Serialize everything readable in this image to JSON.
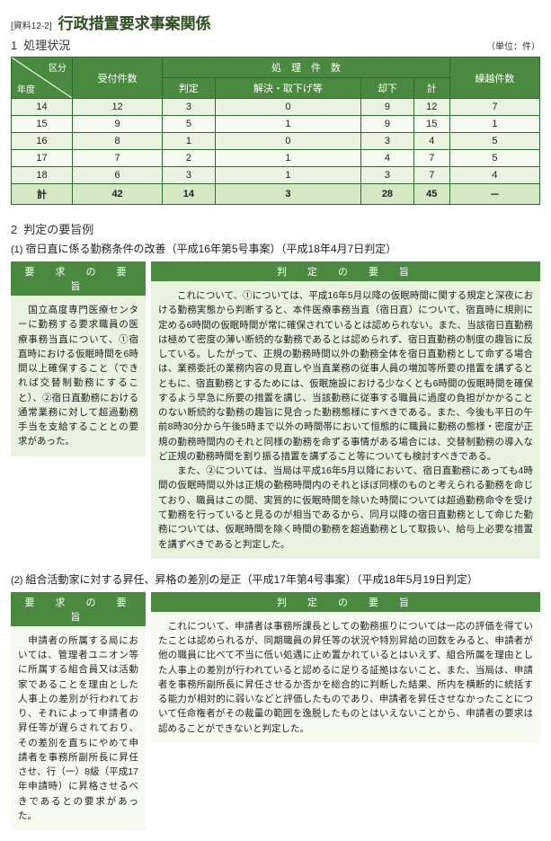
{
  "doc": {
    "ref": "[資料12-2]",
    "title": "行政措置要求事案関係"
  },
  "sec1": {
    "num": "1",
    "label": "処理状況",
    "unit": "（単位：件）",
    "table": {
      "diag_top": "区分",
      "diag_bot": "年度",
      "col_uketsuke": "受付件数",
      "col_shori_group": "処　理　件　数",
      "col_hantei": "判定",
      "col_kaiketsu": "解決・取下げ等",
      "col_kyakka": "却下",
      "col_kei": "計",
      "col_kurikoshi": "繰越件数",
      "rows": [
        {
          "y": "14",
          "a": "12",
          "b": "3",
          "c": "0",
          "d": "9",
          "e": "12",
          "f": "7"
        },
        {
          "y": "15",
          "a": "9",
          "b": "5",
          "c": "1",
          "d": "9",
          "e": "15",
          "f": "1"
        },
        {
          "y": "16",
          "a": "8",
          "b": "1",
          "c": "0",
          "d": "3",
          "e": "4",
          "f": "5"
        },
        {
          "y": "17",
          "a": "7",
          "b": "2",
          "c": "1",
          "d": "4",
          "e": "7",
          "f": "5"
        },
        {
          "y": "18",
          "a": "6",
          "b": "3",
          "c": "1",
          "d": "3",
          "e": "7",
          "f": "4"
        }
      ],
      "total": {
        "y": "計",
        "a": "42",
        "b": "14",
        "c": "3",
        "d": "28",
        "e": "45",
        "f": "－"
      }
    }
  },
  "sec2": {
    "num": "2",
    "label": "判定の要旨例",
    "item1": {
      "num": "(1)",
      "title": "宿日直に係る勤務条件の改善（平成16年第5号事案）（平成18年4月7日判定）",
      "hdr_req": "要　求　の　要　旨",
      "hdr_jdg": "判　定　の　要　旨",
      "req": "　国立高度専門医療センターに勤務する要求職員の医療事務当直について、①宿直時における仮眠時間を6時間以上確保すること（できれば交替制勤務にすること）、②宿日直勤務における通常業務に対して超過勤務手当を支給することとの要求があった。",
      "jdg_p1": "　これについて、①については、平成16年5月以降の仮眠時間に関する規定と深夜における勤務実態から判断すると、本件医療事務当直（宿日直）について、宿直時に規則に定める6時間の仮眠時間が常に確保されているとは認められない。また、当該宿日直勤務は極めて密度の薄い断続的な勤務であるとは認められず、宿日直勤務の制度の趣旨に反している。したがって、正規の勤務時間以外の勤務全体を宿日直勤務として命ずる場合は、業務委託の業務内容の見直しや当直業務の従事人員の増加等所要の措置を講ずるとともに、宿直勤務とするためには、仮眠施設における少なくとも6時間の仮眠時間を確保するよう早急に所要の措置を講じ、当該勤務に従事する職員に過度の負担がかかることのない断続的な勤務の趣旨に見合った勤務態様にすべきである。また、今後も平日の午前8時30分から午後5時まで以外の時間帯において恒態的に職員に勤務の態様・密度が正規の勤務時間内のそれと同様の勤務を命ずる事情がある場合には、交替制勤務の導入など正規の勤務時間を割り振る措置を講ずること等についても検討すべきである。",
      "jdg_p2": "　また、②については、当局は平成16年5月以降において、宿日直勤務にあっても4時間の仮眠時間以外は正規の勤務時間内のそれとほぼ同様のものと考えられる勤務を命じており、職員はこの間、実質的に仮眠時間を除いた時間については超過勤務命令を受けて勤務を行っていると見るのが相当であるから、同月以降の宿日直勤務として命じた勤務については、仮眠時間を除く時間の勤務を超過勤務として取扱い、給与上必要な措置を講ずべきであると判定した。"
    },
    "item2": {
      "num": "(2)",
      "title": "組合活動家に対する昇任、昇格の差別の是正（平成17年第4号事案）（平成18年5月19日判定）",
      "hdr_req": "要　求　の　要　旨",
      "hdr_jdg": "判　定　の　要　旨",
      "req": "　申請者の所属する局においては、管理者ユニオン等に所属する組合員又は活動家であることを理由とした人事上の差別が行われており、それによって申請者の昇任等が遅らされており、その差別を直ちにやめて申請者を事務所副所長に昇任させ、行（一）8級（平成17年申請時）に昇格させるべきであるとの要求があった。",
      "jdg": "　これについて、申請者は事務所課長としての勤務振りについては一応の評価を得ていたことは認められるが、同期職員の昇任等の状況や特別昇給の回数をみると、申請者が他の職員に比べて不当に低い処遇に止め置かれているとはいえず、組合所属を理由とした人事上の差別が行われていると認めるに足りる証拠はないこと、また、当局は、申請者を事務所副所長に昇任させるか否かを総合的に判断した結果、所内を横断的に統括する能力が相対的に弱いなどと評価したものであり、申請者を昇任させなかったことについて任命権者がその裁量の範囲を逸脱したものとはいえないことから、申請者の要求は認めることができないと判定した。"
    }
  }
}
